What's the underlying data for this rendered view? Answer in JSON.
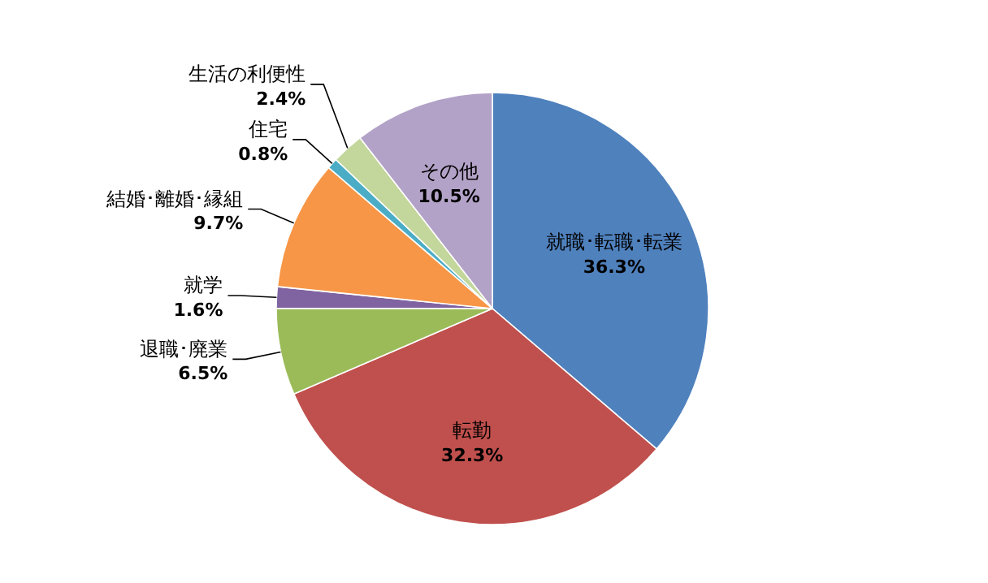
{
  "chart_data": {
    "type": "pie",
    "categories": [
      "就職･転職･転業",
      "転勤",
      "退職･廃業",
      "就学",
      "結婚･離婚･縁組",
      "住宅",
      "生活の利便性",
      "その他"
    ],
    "values": [
      36.3,
      32.3,
      6.5,
      1.6,
      9.7,
      0.8,
      2.4,
      10.5
    ],
    "value_labels": [
      "36.3%",
      "32.3%",
      "6.5%",
      "1.6%",
      "9.7%",
      "0.8%",
      "2.4%",
      "10.5%"
    ],
    "colors": [
      "#4f81bd",
      "#c0504d",
      "#9bbb59",
      "#8064a2",
      "#f79646",
      "#4bacc6",
      "#c3d69b",
      "#b3a2c7"
    ]
  }
}
